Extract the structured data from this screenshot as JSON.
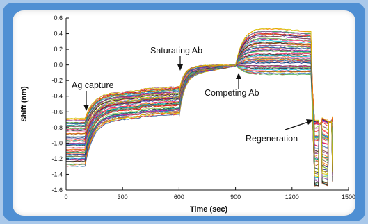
{
  "chart_data": {
    "type": "line",
    "title": "",
    "xlabel": "Time (sec)",
    "ylabel": "Shift (nm)",
    "xlim": [
      0,
      1500
    ],
    "ylim": [
      -1.6,
      0.6
    ],
    "xticks": [
      "0",
      "300",
      "600",
      "900",
      "1200",
      "1500"
    ],
    "yticks": [
      "0.6",
      "0.4",
      "0.2",
      "0.0",
      "-0.2",
      "-0.4",
      "-0.6",
      "-0.8",
      "-1.0",
      "-1.2",
      "-1.4",
      "-1.6"
    ],
    "grid": false,
    "legend": "none",
    "annotations": [
      {
        "text": "Ag capture",
        "x": 100
      },
      {
        "text": "Saturating Ab",
        "x": 600
      },
      {
        "text": "Competing Ab",
        "x": 900
      },
      {
        "text": "Regeneration",
        "x": 1300
      }
    ],
    "series_count": 60,
    "phases": [
      {
        "name": "baseline",
        "x": [
          0,
          100
        ],
        "y_range": [
          -1.3,
          -0.7
        ]
      },
      {
        "name": "Ag capture",
        "x": [
          100,
          600
        ],
        "y_range": [
          -0.7,
          -0.3
        ]
      },
      {
        "name": "Saturating Ab",
        "x": [
          600,
          900
        ],
        "y_range": [
          -0.15,
          0.0
        ]
      },
      {
        "name": "Competing Ab",
        "x": [
          900,
          1300
        ],
        "y_range": [
          -0.15,
          0.5
        ]
      },
      {
        "name": "Regeneration",
        "x": [
          1300,
          1420
        ],
        "y_range": [
          -1.55,
          -0.7
        ]
      }
    ],
    "palette": [
      "#e41a1c",
      "#377eb8",
      "#4daf4a",
      "#984ea3",
      "#ff7f00",
      "#d4c200",
      "#a65628",
      "#f781bf",
      "#222222",
      "#00bcd4",
      "#e91e63",
      "#3f51b5",
      "#8bc34a",
      "#9c27b0",
      "#795548",
      "#009688",
      "#ff5722",
      "#1a237e"
    ]
  }
}
